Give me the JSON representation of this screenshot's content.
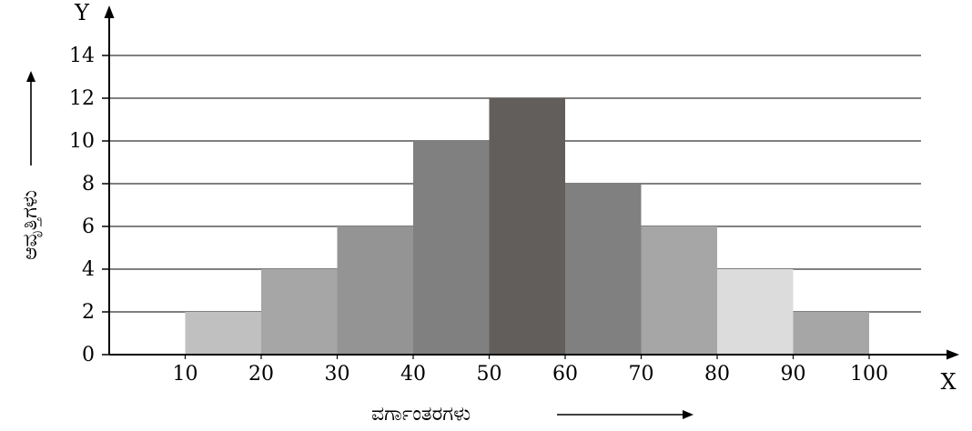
{
  "chart_data": {
    "type": "bar",
    "histogram": true,
    "bin_edges": [
      10,
      20,
      30,
      40,
      50,
      60,
      70,
      80,
      90,
      100
    ],
    "values": [
      2,
      4,
      6,
      10,
      12,
      8,
      6,
      4,
      2
    ],
    "bar_colors": [
      "#c0c0c0",
      "#a6a6a6",
      "#949494",
      "#808080",
      "#625e5c",
      "#808080",
      "#a6a6a6",
      "#dcdcdc",
      "#a6a6a6"
    ],
    "x_ticks": [
      "10",
      "20",
      "30",
      "40",
      "50",
      "60",
      "70",
      "80",
      "90",
      "100"
    ],
    "y_ticks": [
      "0",
      "2",
      "4",
      "6",
      "8",
      "10",
      "12",
      "14"
    ],
    "xlim": [
      0,
      105
    ],
    "ylim": [
      0,
      14
    ],
    "x_axis_letter": "X",
    "y_axis_letter": "Y",
    "xlabel": "ವರ್ಗಾಂತರಗಳು",
    "ylabel": "ಆವೃತ್ತಿಗಳು",
    "grid": "horizontal",
    "gridline_color": "#000000"
  }
}
